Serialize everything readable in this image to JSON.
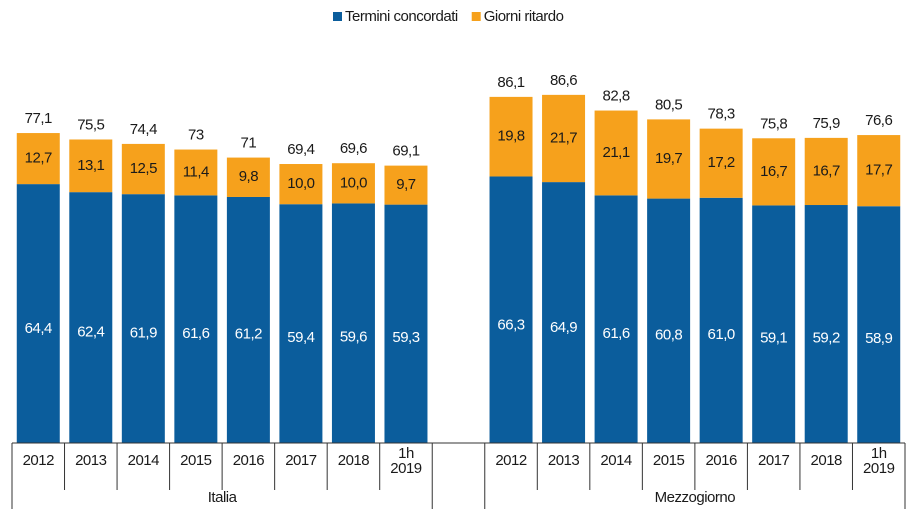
{
  "chart_data": {
    "type": "stacked-bar",
    "categories": [
      "2012",
      "2013",
      "2014",
      "2015",
      "2016",
      "2017",
      "2018",
      "1h 2019",
      null,
      "2012",
      "2013",
      "2014",
      "2015",
      "2016",
      "2017",
      "2018",
      "1h 2019"
    ],
    "groups": [
      "Italia",
      "Mezzogiorno"
    ],
    "series": [
      {
        "name": "Termini concordati",
        "color": "#0b5d9c",
        "values": [
          64.4,
          62.4,
          61.9,
          61.6,
          61.2,
          59.4,
          59.6,
          59.3,
          null,
          66.3,
          64.9,
          61.6,
          60.8,
          61.0,
          59.1,
          59.2,
          58.9
        ],
        "value_labels": [
          "64,4",
          "62,4",
          "61,9",
          "61,6",
          "61,2",
          "59,4",
          "59,6",
          "59,3",
          null,
          "66,3",
          "64,9",
          "61,6",
          "60,8",
          "61,0",
          "59,1",
          "59,2",
          "58,9"
        ]
      },
      {
        "name": "Giorni ritardo",
        "color": "#f6a11c",
        "values": [
          12.7,
          13.1,
          12.5,
          11.4,
          9.8,
          10.0,
          10.0,
          9.7,
          null,
          19.8,
          21.7,
          21.1,
          19.7,
          17.2,
          16.7,
          16.7,
          17.7
        ],
        "value_labels": [
          "12,7",
          "13,1",
          "12,5",
          "11,4",
          "9,8",
          "10,0",
          "10,0",
          "9,7",
          null,
          "19,8",
          "21,7",
          "21,1",
          "19,7",
          "17,2",
          "16,7",
          "16,7",
          "17,7"
        ]
      }
    ],
    "totals": [
      77.1,
      75.5,
      74.4,
      73,
      71,
      69.4,
      69.6,
      69.1,
      null,
      86.1,
      86.6,
      82.8,
      80.5,
      78.3,
      75.8,
      75.9,
      76.6
    ],
    "total_labels": [
      "77,1",
      "75,5",
      "74,4",
      "73",
      "71",
      "69,4",
      "69,6",
      "69,1",
      null,
      "86,1",
      "86,6",
      "82,8",
      "80,5",
      "78,3",
      "75,8",
      "75,9",
      "76,6"
    ],
    "legend": "top"
  }
}
